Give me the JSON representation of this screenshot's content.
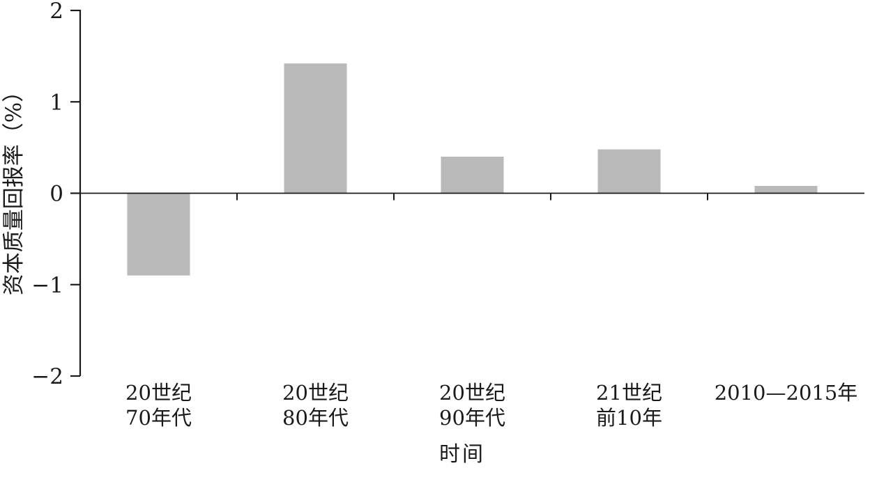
{
  "chart_data": {
    "type": "bar",
    "categories": [
      [
        "20世纪",
        "70年代"
      ],
      [
        "20世纪",
        "80年代"
      ],
      [
        "20世纪",
        "90年代"
      ],
      [
        "21世纪",
        "前10年"
      ],
      [
        "2010—2015年"
      ]
    ],
    "values": [
      -0.9,
      1.42,
      0.4,
      0.48,
      0.08
    ],
    "xlabel": "时间",
    "ylabel": "资本质量回报率（%）",
    "ylim": [
      -2,
      2
    ],
    "yticks": [
      2,
      1,
      0,
      -1,
      -2
    ],
    "grid": false,
    "legend": "none",
    "bar_color": "#b9b9b9",
    "axis_color": "#1a1a1a",
    "text_color": "#1a1a1a"
  }
}
